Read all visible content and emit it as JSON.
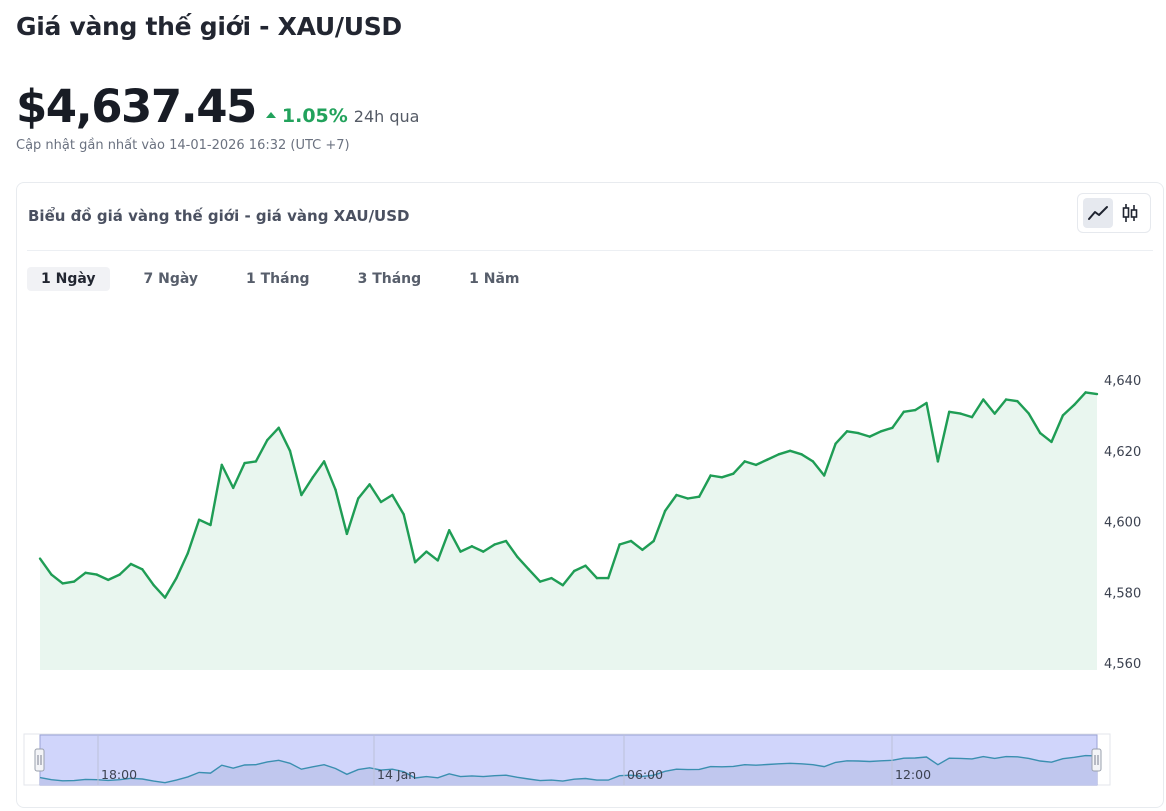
{
  "header": {
    "title": "Giá vàng thế giới - XAU/USD",
    "price": "$4,637.45",
    "change_pct": "1.05%",
    "change_period": "24h qua",
    "updated": "Cập nhật gần nhất vào 14-01-2026 16:32 (UTC +7)"
  },
  "card": {
    "title": "Biểu đồ giá vàng thế giới - giá vàng XAU/USD",
    "chart_types": [
      "line-chart-icon",
      "candlestick-icon"
    ],
    "active_chart_type": "line-chart-icon"
  },
  "tabs": [
    {
      "label": "1 Ngày",
      "active": true
    },
    {
      "label": "7 Ngày",
      "active": false
    },
    {
      "label": "1 Tháng",
      "active": false
    },
    {
      "label": "3 Tháng",
      "active": false
    },
    {
      "label": "1 Năm",
      "active": false
    }
  ],
  "colors": {
    "line": "#1f9d55",
    "area": "#e9f6ef",
    "up": "#22a25c",
    "navigator_fill": "#d0d5fb",
    "navigator_line": "#3a8fb0"
  },
  "chart_data": {
    "type": "area",
    "title": "",
    "xlabel": "",
    "ylabel": "",
    "ylim": [
      4560,
      4640
    ],
    "yticks": [
      4640,
      4620,
      4600,
      4580,
      4560
    ],
    "ytick_labels": [
      "4,640",
      "4,620",
      "4,600",
      "4,580",
      "4,560"
    ],
    "grid": false,
    "legend": "none",
    "series": [
      {
        "values": [
          4589.5,
          4585,
          4582.5,
          4583,
          4585.5,
          4585,
          4583.5,
          4585,
          4588,
          4586.5,
          4582,
          4578.5,
          4584,
          4591,
          4600.5,
          4599,
          4616,
          4609.5,
          4616.5,
          4617,
          4623,
          4626.5,
          4620,
          4607.5,
          4612.5,
          4617,
          4609,
          4596.5,
          4606.5,
          4610.5,
          4605.5,
          4607.5,
          4602,
          4588.5,
          4591.5,
          4589,
          4597.5,
          4591.5,
          4593,
          4591.5,
          4593.5,
          4594.5,
          4590,
          4586.5,
          4583,
          4584,
          4582,
          4586,
          4587.5,
          4584,
          4584,
          4593.5,
          4594.5,
          4592,
          4594.5,
          4603,
          4607.5,
          4606.5,
          4607,
          4613,
          4612.5,
          4613.5,
          4617,
          4616,
          4617.5,
          4619,
          4620,
          4619,
          4617,
          4613,
          4622,
          4625.5,
          4625,
          4624,
          4625.5,
          4626.5,
          4631,
          4631.5,
          4633.5,
          4617,
          4631,
          4630.5,
          4629.5,
          4634.5,
          4630.5,
          4634.5,
          4634,
          4630.5,
          4625,
          4622.5,
          4630,
          4633,
          4636.5,
          4636
        ]
      }
    ],
    "navigator": {
      "x_labels": [
        "18:00",
        "14 Jan",
        "06:00",
        "12:00"
      ]
    }
  }
}
